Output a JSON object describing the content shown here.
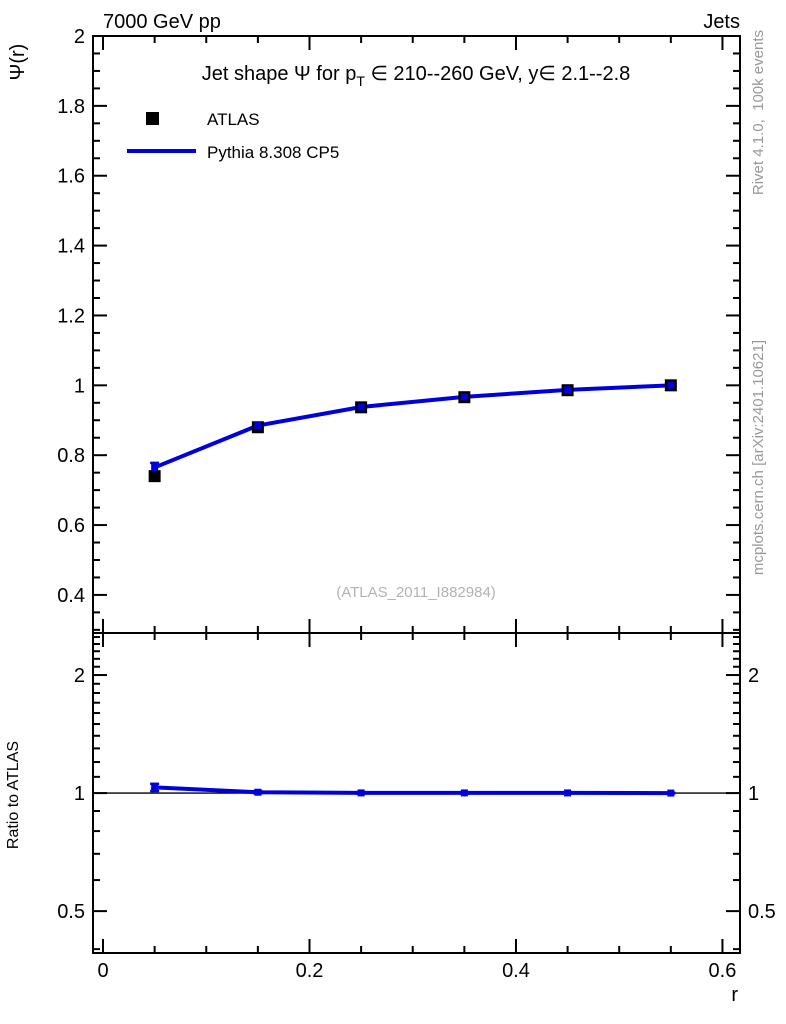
{
  "header": {
    "left": "7000 GeV pp",
    "right": "Jets"
  },
  "watermark": "(ATLAS_2011_I882984)",
  "side_notes": {
    "top": "Rivet 4.1.0,  100k events",
    "bottom": "mcplots.cern.ch [arXiv:2401.10621]"
  },
  "colors": {
    "mc_line": "#0000dd",
    "data_marker": "#000000",
    "side_text": "#999999",
    "watermark": "#b3b3b3"
  },
  "chart_data": {
    "type": "line",
    "title": "Jet shape Ψ for p_T ∈ 210--260 GeV, y∈ 2.1--2.8",
    "title_parts": {
      "prefix": "Jet shape Ψ for p",
      "sub": "T",
      "suffix": " ∈ 210--260 GeV, y∈ 2.1--2.8"
    },
    "xlabel": "r",
    "ylabel": "Ψ(r)",
    "ratio_ylabel": "Ratio to ATLAS",
    "x": [
      0.05,
      0.15,
      0.25,
      0.35,
      0.45,
      0.55
    ],
    "series": [
      {
        "name": "ATLAS",
        "type": "marker",
        "values": [
          0.74,
          0.88,
          0.937,
          0.966,
          0.986,
          1.0
        ]
      },
      {
        "name": "Pythia 8.308 CP5",
        "type": "line",
        "values": [
          0.765,
          0.885,
          0.938,
          0.967,
          0.987,
          1.0
        ],
        "errors": [
          0.013,
          0.006,
          0.004,
          0.003,
          0.003,
          0.002
        ]
      }
    ],
    "ratio": {
      "reference": 1.0,
      "values": [
        1.034,
        1.005,
        1.001,
        1.001,
        1.001,
        1.0
      ],
      "errors": [
        0.022,
        0.007,
        0.005,
        0.004,
        0.003,
        0.002
      ]
    },
    "legend": [
      {
        "label": "ATLAS",
        "marker": "square"
      },
      {
        "label": "Pythia 8.308 CP5",
        "marker": "line"
      }
    ],
    "axes": {
      "main": {
        "xlim": [
          -0.0097,
          0.617
        ],
        "ylim": [
          0.291,
          2.0
        ],
        "x_minor_step": 0.05,
        "y_minor_step": 0.05,
        "y_ticks": [
          {
            "v": 2.0,
            "label": "2"
          },
          {
            "v": 1.8,
            "label": "1.8"
          },
          {
            "v": 1.6,
            "label": "1.6"
          },
          {
            "v": 1.4,
            "label": "1.4"
          },
          {
            "v": 1.2,
            "label": "1.2"
          },
          {
            "v": 1.0,
            "label": "1"
          },
          {
            "v": 0.8,
            "label": "0.8"
          },
          {
            "v": 0.6,
            "label": "0.6"
          },
          {
            "v": 0.4,
            "label": "0.4"
          }
        ],
        "x_ticks": [
          {
            "v": 0.0,
            "label": "0"
          },
          {
            "v": 0.2,
            "label": "0.2"
          },
          {
            "v": 0.4,
            "label": "0.4"
          },
          {
            "v": 0.6,
            "label": "0.6"
          }
        ]
      },
      "ratio": {
        "scale": "log",
        "ylim": [
          0.391,
          2.56
        ],
        "y_ticks": [
          {
            "v": 2.0,
            "label": "2"
          },
          {
            "v": 1.0,
            "label": "1"
          },
          {
            "v": 0.5,
            "label": "0.5"
          }
        ],
        "y_minor": [
          0.4,
          0.6,
          0.7,
          0.8,
          0.9,
          1.1,
          1.2,
          1.3,
          1.4,
          1.5,
          1.6,
          1.7,
          1.8,
          1.9,
          2.1,
          2.2,
          2.3,
          2.4,
          2.5
        ]
      }
    }
  }
}
